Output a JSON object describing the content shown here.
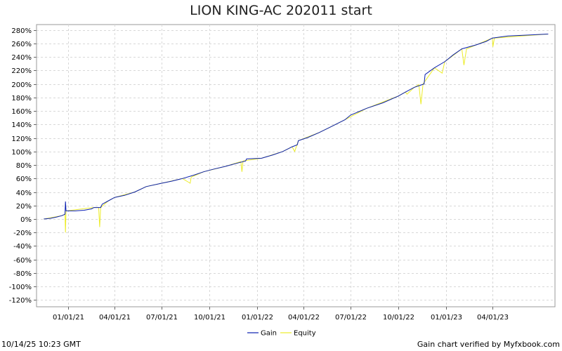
{
  "chart_data": {
    "type": "line",
    "title": "LION KING-AC 202011 start",
    "xlabel": "",
    "ylabel": "",
    "ylim": [
      -130,
      288
    ],
    "y_ticks": [
      280,
      260,
      240,
      220,
      200,
      180,
      160,
      140,
      120,
      100,
      80,
      60,
      40,
      20,
      0,
      -20,
      -40,
      -60,
      -80,
      -100,
      -120
    ],
    "x_tick_labels": [
      "01/01/21",
      "04/01/21",
      "07/01/21",
      "10/01/21",
      "01/01/22",
      "04/01/22",
      "07/01/22",
      "10/01/22",
      "01/01/23",
      "04/01/23"
    ],
    "x_range": [
      "2020-11-01",
      "2023-07-31"
    ],
    "grid": true,
    "legend_position": "bottom-center",
    "series": [
      {
        "name": "Gain",
        "color": "#0a1fb0",
        "points": [
          [
            "2020-11-15",
            0
          ],
          [
            "2020-11-28",
            1
          ],
          [
            "2020-12-10",
            3
          ],
          [
            "2020-12-20",
            5
          ],
          [
            "2020-12-26",
            7
          ],
          [
            "2020-12-27",
            26
          ],
          [
            "2020-12-28",
            12
          ],
          [
            "2021-01-15",
            12
          ],
          [
            "2021-02-01",
            13
          ],
          [
            "2021-02-15",
            15
          ],
          [
            "2021-02-20",
            17
          ],
          [
            "2021-03-05",
            17
          ],
          [
            "2021-03-08",
            22
          ],
          [
            "2021-03-20",
            27
          ],
          [
            "2021-04-01",
            32
          ],
          [
            "2021-04-20",
            35
          ],
          [
            "2021-05-10",
            40
          ],
          [
            "2021-06-01",
            48
          ],
          [
            "2021-07-01",
            53
          ],
          [
            "2021-07-20",
            56
          ],
          [
            "2021-08-10",
            60
          ],
          [
            "2021-09-01",
            65
          ],
          [
            "2021-09-20",
            70
          ],
          [
            "2021-10-10",
            74
          ],
          [
            "2021-11-01",
            78
          ],
          [
            "2021-11-25",
            83
          ],
          [
            "2021-12-10",
            86
          ],
          [
            "2021-12-12",
            89
          ],
          [
            "2022-01-10",
            90
          ],
          [
            "2022-02-01",
            95
          ],
          [
            "2022-02-20",
            100
          ],
          [
            "2022-03-10",
            107
          ],
          [
            "2022-03-20",
            110
          ],
          [
            "2022-03-22",
            116
          ],
          [
            "2022-04-10",
            121
          ],
          [
            "2022-05-01",
            128
          ],
          [
            "2022-05-20",
            135
          ],
          [
            "2022-06-20",
            147
          ],
          [
            "2022-07-01",
            154
          ],
          [
            "2022-08-01",
            164
          ],
          [
            "2022-09-01",
            172
          ],
          [
            "2022-10-01",
            182
          ],
          [
            "2022-10-15",
            188
          ],
          [
            "2022-11-01",
            195
          ],
          [
            "2022-11-20",
            200
          ],
          [
            "2022-11-22",
            214
          ],
          [
            "2022-12-10",
            224
          ],
          [
            "2022-12-30",
            233
          ],
          [
            "2023-01-15",
            243
          ],
          [
            "2023-02-01",
            252
          ],
          [
            "2023-03-01",
            258
          ],
          [
            "2023-03-20",
            263
          ],
          [
            "2023-04-01",
            268
          ],
          [
            "2023-05-01",
            271
          ],
          [
            "2023-07-18",
            274
          ]
        ]
      },
      {
        "name": "Equity",
        "color": "#ecec2a",
        "points": [
          [
            "2020-11-15",
            0
          ],
          [
            "2020-12-20",
            5
          ],
          [
            "2020-12-26",
            7
          ],
          [
            "2020-12-27",
            -20
          ],
          [
            "2020-12-28",
            12
          ],
          [
            "2021-02-20",
            17
          ],
          [
            "2021-03-01",
            17
          ],
          [
            "2021-03-03",
            -12
          ],
          [
            "2021-03-05",
            17
          ],
          [
            "2021-03-20",
            27
          ],
          [
            "2021-04-01",
            32
          ],
          [
            "2021-05-10",
            40
          ],
          [
            "2021-06-01",
            48
          ],
          [
            "2021-07-01",
            53
          ],
          [
            "2021-08-10",
            60
          ],
          [
            "2021-08-25",
            53
          ],
          [
            "2021-08-27",
            62
          ],
          [
            "2021-09-20",
            70
          ],
          [
            "2021-11-01",
            78
          ],
          [
            "2021-12-01",
            85
          ],
          [
            "2021-12-03",
            70
          ],
          [
            "2021-12-05",
            86
          ],
          [
            "2022-01-10",
            90
          ],
          [
            "2022-02-20",
            100
          ],
          [
            "2022-03-10",
            107
          ],
          [
            "2022-03-15",
            100
          ],
          [
            "2022-03-22",
            116
          ],
          [
            "2022-05-01",
            128
          ],
          [
            "2022-05-20",
            135
          ],
          [
            "2022-06-20",
            147
          ],
          [
            "2022-08-01",
            164
          ],
          [
            "2022-10-01",
            182
          ],
          [
            "2022-10-15",
            188
          ],
          [
            "2022-10-18",
            185
          ],
          [
            "2022-11-01",
            195
          ],
          [
            "2022-11-10",
            199
          ],
          [
            "2022-11-14",
            170
          ],
          [
            "2022-11-18",
            200
          ],
          [
            "2022-12-10",
            224
          ],
          [
            "2022-12-25",
            216
          ],
          [
            "2022-12-30",
            233
          ],
          [
            "2023-01-20",
            245
          ],
          [
            "2023-02-01",
            252
          ],
          [
            "2023-02-05",
            228
          ],
          [
            "2023-02-10",
            252
          ],
          [
            "2023-03-01",
            258
          ],
          [
            "2023-04-01",
            268
          ],
          [
            "2023-04-02",
            255
          ],
          [
            "2023-04-05",
            268
          ],
          [
            "2023-07-18",
            274
          ]
        ]
      }
    ]
  },
  "footer": {
    "timestamp": "10/14/25 10:23 GMT",
    "verified": "Gain chart verified by Myfxbook.com"
  }
}
